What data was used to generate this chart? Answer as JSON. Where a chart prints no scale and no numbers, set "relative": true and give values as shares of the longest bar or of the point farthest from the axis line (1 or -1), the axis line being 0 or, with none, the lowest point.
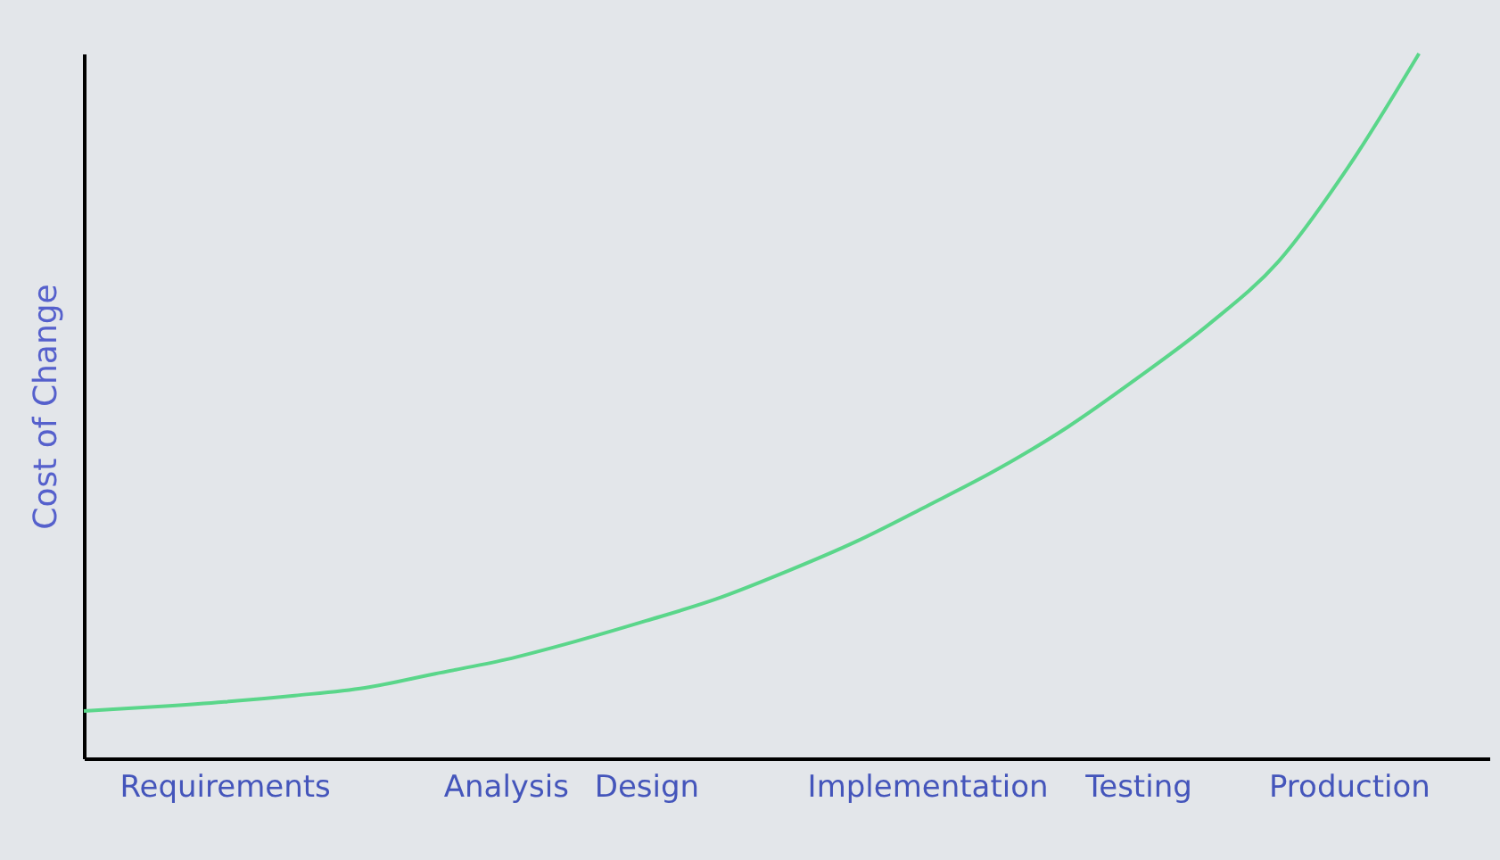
{
  "chart_data": {
    "type": "line",
    "relative": true,
    "ylabel": "Cost of Change",
    "color": "#5ad68a",
    "grid": false,
    "marker": "none",
    "categories": [
      null,
      null,
      "Requirements",
      null,
      null,
      null,
      "Analysis",
      null,
      "Design",
      null,
      null,
      null,
      "Implementation",
      null,
      null,
      "Testing",
      null,
      null,
      "Production",
      null,
      null
    ],
    "values": [
      0.067,
      0.073,
      0.08,
      0.089,
      0.1,
      0.12,
      0.14,
      0.166,
      0.195,
      0.226,
      0.265,
      0.308,
      0.358,
      0.41,
      0.47,
      0.54,
      0.615,
      0.705,
      0.84,
      1,
      null
    ]
  }
}
